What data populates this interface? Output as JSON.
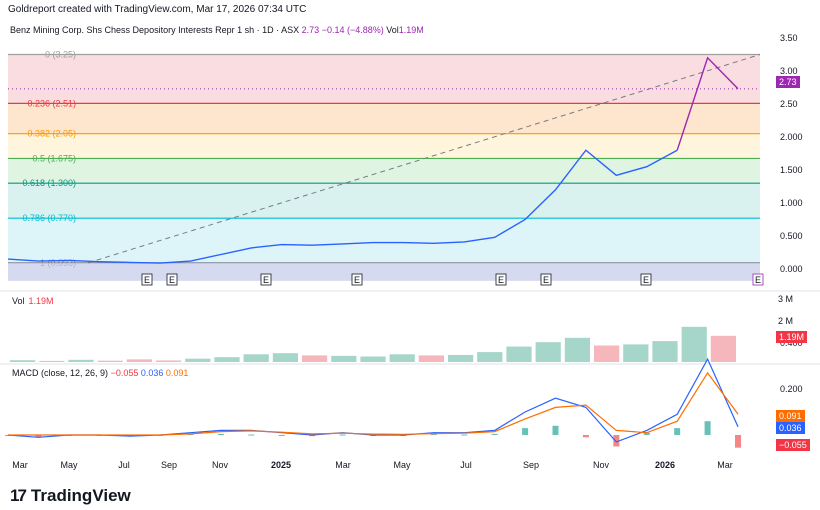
{
  "header": {
    "created": "Goldreport created with TradingView.com, Mar 17, 2026 07:34 UTC"
  },
  "title": {
    "symbol": "Benz Mining Corp. Shs Chess Depository Interests Repr 1 sh · 1D · ASX",
    "price": "2.73",
    "change": "−0.14 (−4.88%)",
    "vol_label": "Vol",
    "vol_value": "1.19M"
  },
  "colors": {
    "price": "#9c27b0",
    "line": "#2962ff",
    "up": "#089981",
    "down": "#f23645",
    "macd": "#2962ff",
    "signal": "#ff6d00"
  },
  "chart_data": [
    {
      "type": "line",
      "title": "Benz Mining Corp. Shs Chess Depository Interests Repr 1 sh · 1D · ASX",
      "x": [
        "2024-03",
        "2024-04",
        "2024-05",
        "2024-06",
        "2024-07",
        "2024-08",
        "2024-09",
        "2024-10",
        "2024-11",
        "2024-12",
        "2025-01",
        "2025-02",
        "2025-03",
        "2025-04",
        "2025-05",
        "2025-06",
        "2025-07",
        "2025-08",
        "2025-09",
        "2025-10",
        "2025-11",
        "2025-12",
        "2026-01",
        "2026-02",
        "2026-03"
      ],
      "y": [
        0.15,
        0.12,
        0.13,
        0.11,
        0.1,
        0.09,
        0.12,
        0.22,
        0.32,
        0.37,
        0.36,
        0.38,
        0.4,
        0.4,
        0.39,
        0.41,
        0.48,
        0.75,
        1.2,
        1.8,
        1.42,
        1.55,
        1.8,
        3.2,
        2.73
      ],
      "ylim": [
        0,
        3.5
      ],
      "y_ticks": [
        "0.000",
        "0.500",
        "1.000",
        "1.500",
        "2.000",
        "2.50",
        "3.00",
        "3.50"
      ],
      "x_ticks": [
        "Mar",
        "May",
        "Jul",
        "Sep",
        "Nov",
        "2025",
        "Mar",
        "May",
        "Jul",
        "Sep",
        "Nov",
        "2026",
        "Mar"
      ],
      "fib_levels": [
        {
          "label": "0 (3.25)",
          "value": 3.25,
          "color": "#9e9e9e"
        },
        {
          "label": "0.236 (2.51)",
          "value": 2.51,
          "color": "#f23645"
        },
        {
          "label": "0.382 (2.05)",
          "value": 2.05,
          "color": "#ff9800"
        },
        {
          "label": "0.5 (1.675)",
          "value": 1.675,
          "color": "#4caf50"
        },
        {
          "label": "0.618 (1.300)",
          "value": 1.3,
          "color": "#089981"
        },
        {
          "label": "0.786 (0.770)",
          "value": 0.77,
          "color": "#00bcd4"
        },
        {
          "label": "1 (0.093)",
          "value": 0.093,
          "color": "#787b86"
        }
      ],
      "last_price_label": "2.73",
      "earnings_markers": [
        "E",
        "E",
        "E",
        "E",
        "E",
        "E",
        "E",
        "E"
      ]
    },
    {
      "type": "bar",
      "title": "Vol",
      "value_label": "1.19M",
      "y_ticks": [
        "3 M",
        "2 M"
      ],
      "values": [
        0.08,
        0.05,
        0.1,
        0.06,
        0.12,
        0.07,
        0.15,
        0.22,
        0.35,
        0.4,
        0.3,
        0.28,
        0.25,
        0.35,
        0.3,
        0.32,
        0.45,
        0.7,
        0.9,
        1.1,
        0.75,
        0.8,
        0.95,
        1.6,
        1.19
      ]
    },
    {
      "type": "line",
      "title": "MACD (close, 12, 26, 9)",
      "params": "(close, 12, 26, 9)",
      "series": [
        {
          "name": "MACD",
          "values": [
            0.0,
            -0.01,
            0.0,
            0.0,
            -0.005,
            0.0,
            0.01,
            0.02,
            0.02,
            0.01,
            0.0,
            0.01,
            0.0,
            0.0,
            0.01,
            0.01,
            0.02,
            0.1,
            0.16,
            0.12,
            -0.03,
            0.02,
            0.09,
            0.33,
            0.036
          ]
        },
        {
          "name": "Signal",
          "values": [
            0.0,
            0.0,
            0.0,
            0.0,
            0.0,
            0.0,
            0.005,
            0.015,
            0.018,
            0.012,
            0.005,
            0.008,
            0.004,
            0.003,
            0.006,
            0.008,
            0.015,
            0.07,
            0.12,
            0.13,
            0.02,
            0.01,
            0.06,
            0.27,
            0.091
          ]
        }
      ],
      "value_labels": {
        "histogram": "−0.055",
        "macd": "0.036",
        "signal": "0.091"
      },
      "y_ticks": [
        "0.400",
        "0.200"
      ]
    }
  ],
  "branding": {
    "logo_text": "TradingView",
    "logo_mark": "17"
  }
}
